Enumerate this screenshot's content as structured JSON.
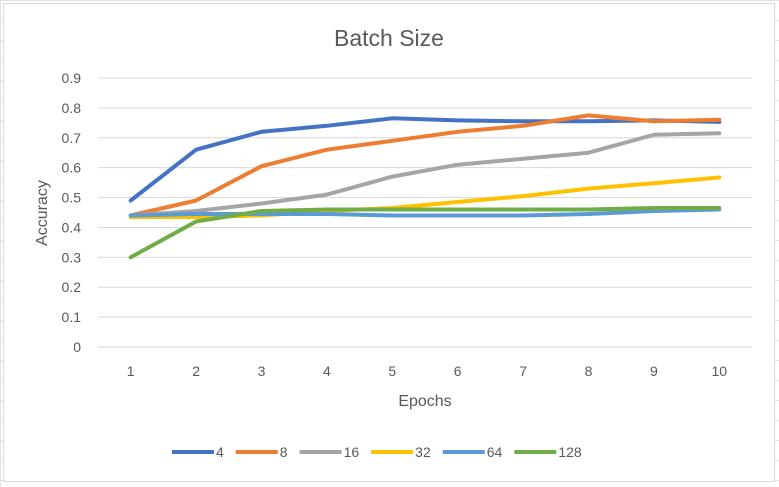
{
  "chart_data": {
    "type": "line",
    "title": "Batch Size",
    "xlabel": "Epochs",
    "ylabel": "Accuracy",
    "categories": [
      "1",
      "2",
      "3",
      "4",
      "5",
      "6",
      "7",
      "8",
      "9",
      "10"
    ],
    "y_ticks": [
      "0",
      "0.1",
      "0.2",
      "0.3",
      "0.4",
      "0.5",
      "0.6",
      "0.7",
      "0.8",
      "0.9"
    ],
    "ylim": [
      0,
      0.9
    ],
    "grid": true,
    "legend_position": "bottom",
    "series": [
      {
        "name": "4",
        "color": "#4472c4",
        "values": [
          0.49,
          0.66,
          0.72,
          0.74,
          0.765,
          0.758,
          0.755,
          0.755,
          0.758,
          0.753
        ]
      },
      {
        "name": "8",
        "color": "#ed7d31",
        "values": [
          0.44,
          0.49,
          0.605,
          0.66,
          0.69,
          0.72,
          0.74,
          0.775,
          0.755,
          0.76
        ]
      },
      {
        "name": "16",
        "color": "#a5a5a5",
        "values": [
          0.44,
          0.455,
          0.48,
          0.51,
          0.57,
          0.61,
          0.63,
          0.65,
          0.71,
          0.715
        ]
      },
      {
        "name": "32",
        "color": "#ffc000",
        "values": [
          0.435,
          0.435,
          0.44,
          0.455,
          0.465,
          0.485,
          0.505,
          0.53,
          0.548,
          0.567
        ]
      },
      {
        "name": "64",
        "color": "#5b9bd5",
        "values": [
          0.44,
          0.445,
          0.445,
          0.445,
          0.44,
          0.44,
          0.44,
          0.445,
          0.455,
          0.46
        ]
      },
      {
        "name": "128",
        "color": "#70ad47",
        "values": [
          0.3,
          0.42,
          0.455,
          0.46,
          0.46,
          0.46,
          0.46,
          0.46,
          0.465,
          0.465
        ]
      }
    ]
  }
}
